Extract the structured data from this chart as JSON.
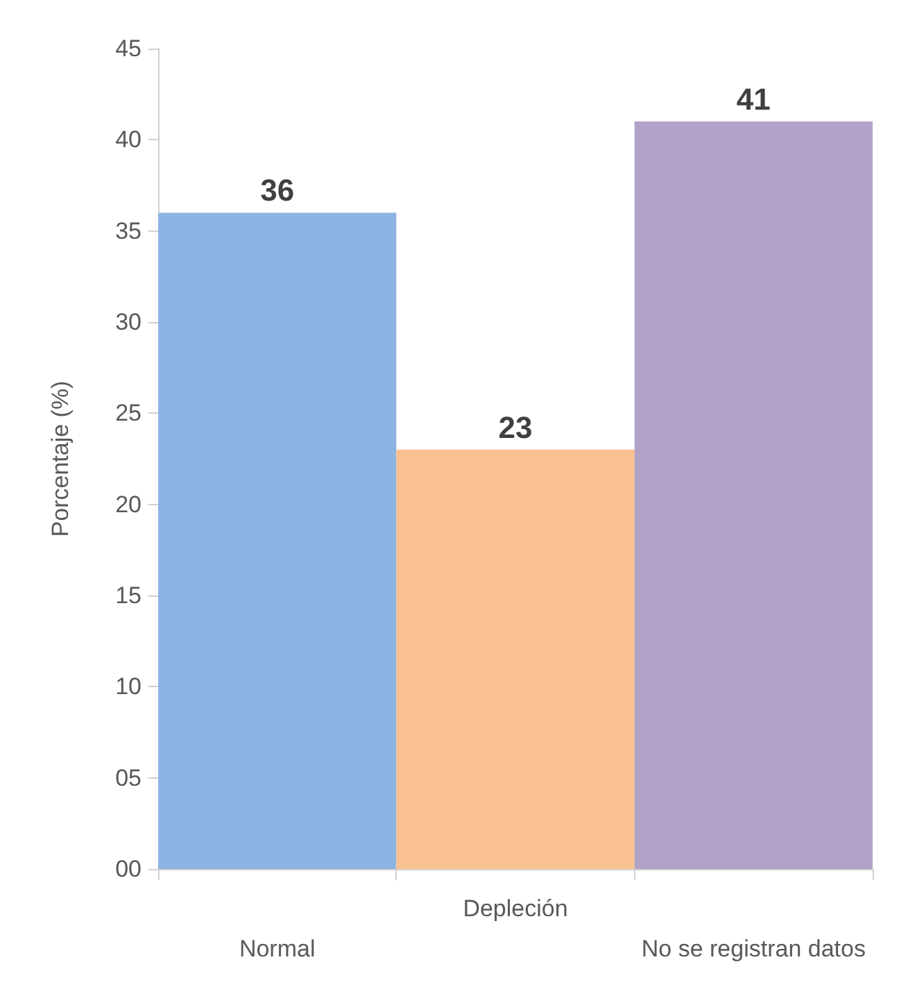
{
  "chart_data": {
    "type": "bar",
    "ylabel": "Porcentaje (%)",
    "categories": [
      "Normal",
      "Depleción",
      "No se registran datos"
    ],
    "values": [
      36,
      23,
      41
    ],
    "colors": [
      "#8eb4e3",
      "#f9c090",
      "#b2a2c7"
    ],
    "ylim": [
      0,
      45
    ],
    "yticks": [
      {
        "value": 0,
        "label": "00"
      },
      {
        "value": 5,
        "label": "05"
      },
      10,
      15,
      20,
      25,
      30,
      35,
      40,
      45
    ],
    "data_labels": true
  }
}
